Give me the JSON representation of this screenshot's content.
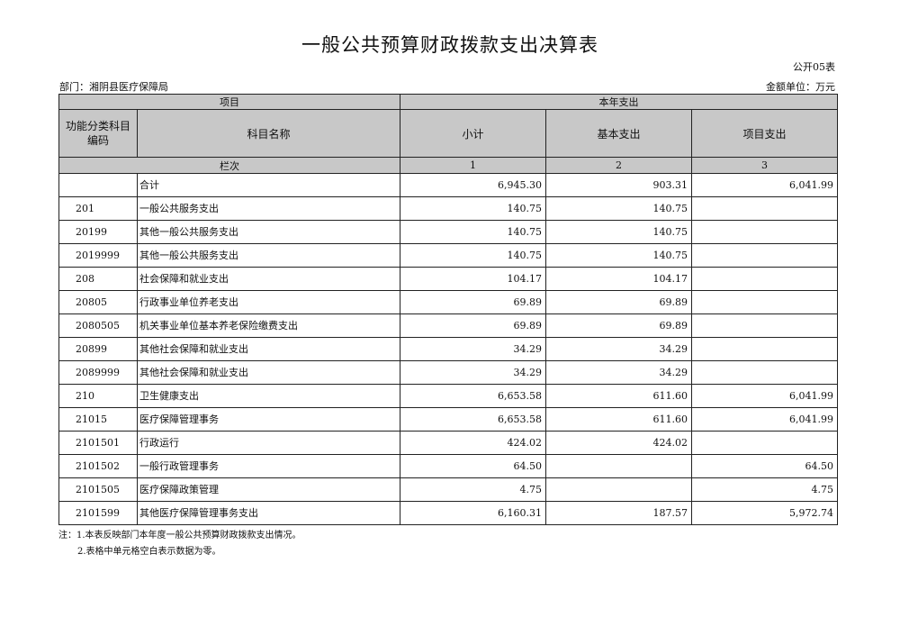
{
  "title": "一般公共预算财政拨款支出决算表",
  "form_no": "公开05表",
  "department": "部门：湘阴县医疗保障局",
  "unit": "金额单位：万元",
  "headers": {
    "project": "项目",
    "current_year": "本年支出",
    "code": "功能分类科目编码",
    "name": "科目名称",
    "subtotal": "小计",
    "basic": "基本支出",
    "project_exp": "项目支出",
    "column_index": "栏次",
    "col1": "1",
    "col2": "2",
    "col3": "3"
  },
  "rows": [
    {
      "code": "",
      "name": "合计",
      "subtotal": "6,945.30",
      "basic": "903.31",
      "project": "6,041.99"
    },
    {
      "code": "201",
      "name": "一般公共服务支出",
      "subtotal": "140.75",
      "basic": "140.75",
      "project": ""
    },
    {
      "code": "20199",
      "name": "其他一般公共服务支出",
      "subtotal": "140.75",
      "basic": "140.75",
      "project": ""
    },
    {
      "code": "2019999",
      "name": "其他一般公共服务支出",
      "subtotal": "140.75",
      "basic": "140.75",
      "project": ""
    },
    {
      "code": "208",
      "name": "社会保障和就业支出",
      "subtotal": "104.17",
      "basic": "104.17",
      "project": ""
    },
    {
      "code": "20805",
      "name": "行政事业单位养老支出",
      "subtotal": "69.89",
      "basic": "69.89",
      "project": ""
    },
    {
      "code": "2080505",
      "name": "机关事业单位基本养老保险缴费支出",
      "subtotal": "69.89",
      "basic": "69.89",
      "project": ""
    },
    {
      "code": "20899",
      "name": "其他社会保障和就业支出",
      "subtotal": "34.29",
      "basic": "34.29",
      "project": ""
    },
    {
      "code": "2089999",
      "name": "其他社会保障和就业支出",
      "subtotal": "34.29",
      "basic": "34.29",
      "project": ""
    },
    {
      "code": "210",
      "name": "卫生健康支出",
      "subtotal": "6,653.58",
      "basic": "611.60",
      "project": "6,041.99"
    },
    {
      "code": "21015",
      "name": "医疗保障管理事务",
      "subtotal": "6,653.58",
      "basic": "611.60",
      "project": "6,041.99"
    },
    {
      "code": "2101501",
      "name": "行政运行",
      "subtotal": "424.02",
      "basic": "424.02",
      "project": ""
    },
    {
      "code": "2101502",
      "name": "一般行政管理事务",
      "subtotal": "64.50",
      "basic": "",
      "project": "64.50"
    },
    {
      "code": "2101505",
      "name": "医疗保障政策管理",
      "subtotal": "4.75",
      "basic": "",
      "project": "4.75"
    },
    {
      "code": "2101599",
      "name": "其他医疗保障管理事务支出",
      "subtotal": "6,160.31",
      "basic": "187.57",
      "project": "5,972.74"
    }
  ],
  "notes": [
    "注：1.本表反映部门本年度一般公共预算财政拨款支出情况。",
    "2.表格中单元格空白表示数据为零。"
  ]
}
